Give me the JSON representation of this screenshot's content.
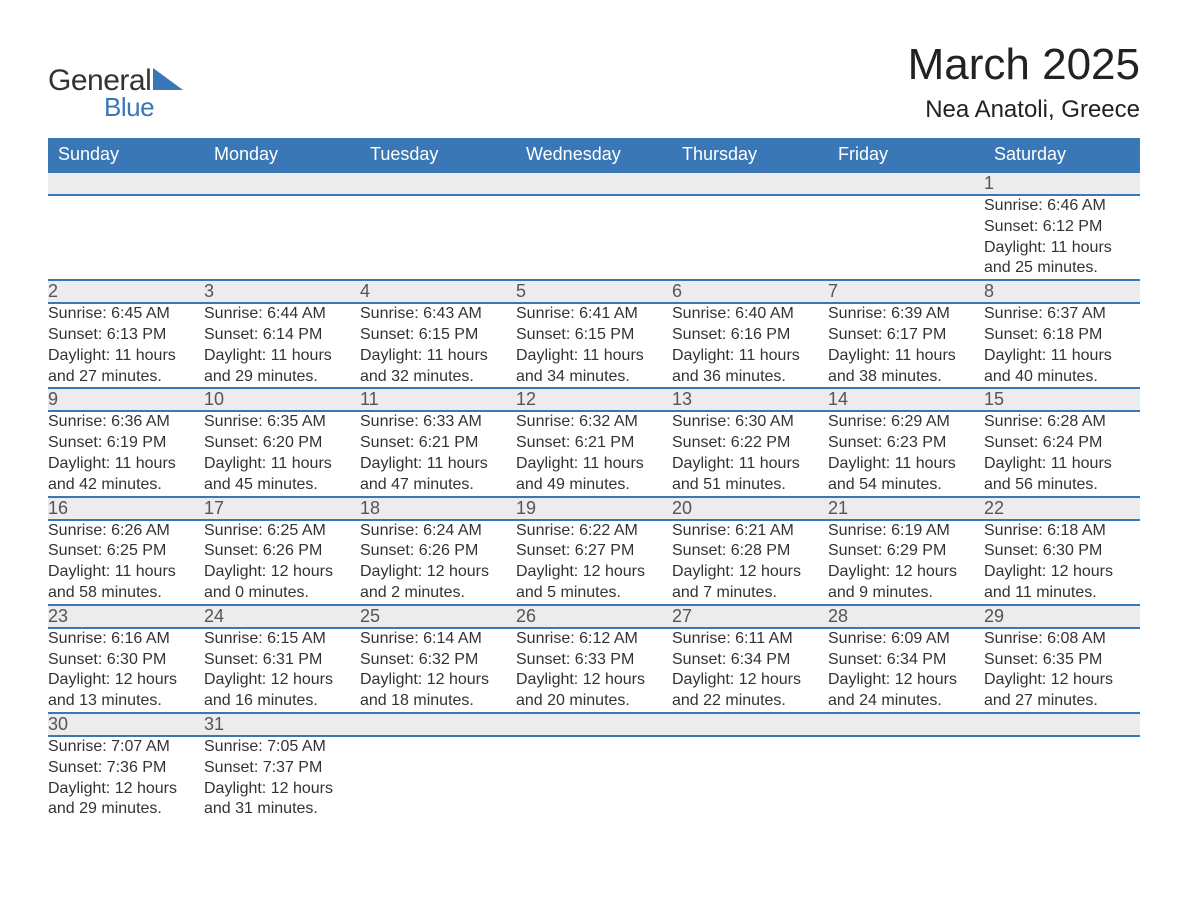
{
  "brand": {
    "name1": "General",
    "name2": "Blue",
    "shape_color": "#3a77b7",
    "text_color": "#333333"
  },
  "title": "March 2025",
  "location": "Nea Anatoli, Greece",
  "colors": {
    "header_bg": "#3a77b7",
    "header_text": "#ffffff",
    "daynum_bg": "#ececec",
    "daynum_text": "#555555",
    "row_divider": "#3a77b7",
    "body_text": "#333333",
    "page_bg": "#ffffff"
  },
  "font": {
    "family": "Arial",
    "title_size_pt": 33,
    "location_size_pt": 18,
    "header_size_pt": 14,
    "daynum_size_pt": 14,
    "detail_size_pt": 12
  },
  "weekdays": [
    "Sunday",
    "Monday",
    "Tuesday",
    "Wednesday",
    "Thursday",
    "Friday",
    "Saturday"
  ],
  "labels": {
    "sunrise": "Sunrise",
    "sunset": "Sunset",
    "daylight": "Daylight"
  },
  "weeks": [
    [
      null,
      null,
      null,
      null,
      null,
      null,
      {
        "n": "1",
        "sr": "6:46 AM",
        "ss": "6:12 PM",
        "dl": "11 hours and 25 minutes."
      }
    ],
    [
      {
        "n": "2",
        "sr": "6:45 AM",
        "ss": "6:13 PM",
        "dl": "11 hours and 27 minutes."
      },
      {
        "n": "3",
        "sr": "6:44 AM",
        "ss": "6:14 PM",
        "dl": "11 hours and 29 minutes."
      },
      {
        "n": "4",
        "sr": "6:43 AM",
        "ss": "6:15 PM",
        "dl": "11 hours and 32 minutes."
      },
      {
        "n": "5",
        "sr": "6:41 AM",
        "ss": "6:15 PM",
        "dl": "11 hours and 34 minutes."
      },
      {
        "n": "6",
        "sr": "6:40 AM",
        "ss": "6:16 PM",
        "dl": "11 hours and 36 minutes."
      },
      {
        "n": "7",
        "sr": "6:39 AM",
        "ss": "6:17 PM",
        "dl": "11 hours and 38 minutes."
      },
      {
        "n": "8",
        "sr": "6:37 AM",
        "ss": "6:18 PM",
        "dl": "11 hours and 40 minutes."
      }
    ],
    [
      {
        "n": "9",
        "sr": "6:36 AM",
        "ss": "6:19 PM",
        "dl": "11 hours and 42 minutes."
      },
      {
        "n": "10",
        "sr": "6:35 AM",
        "ss": "6:20 PM",
        "dl": "11 hours and 45 minutes."
      },
      {
        "n": "11",
        "sr": "6:33 AM",
        "ss": "6:21 PM",
        "dl": "11 hours and 47 minutes."
      },
      {
        "n": "12",
        "sr": "6:32 AM",
        "ss": "6:21 PM",
        "dl": "11 hours and 49 minutes."
      },
      {
        "n": "13",
        "sr": "6:30 AM",
        "ss": "6:22 PM",
        "dl": "11 hours and 51 minutes."
      },
      {
        "n": "14",
        "sr": "6:29 AM",
        "ss": "6:23 PM",
        "dl": "11 hours and 54 minutes."
      },
      {
        "n": "15",
        "sr": "6:28 AM",
        "ss": "6:24 PM",
        "dl": "11 hours and 56 minutes."
      }
    ],
    [
      {
        "n": "16",
        "sr": "6:26 AM",
        "ss": "6:25 PM",
        "dl": "11 hours and 58 minutes."
      },
      {
        "n": "17",
        "sr": "6:25 AM",
        "ss": "6:26 PM",
        "dl": "12 hours and 0 minutes."
      },
      {
        "n": "18",
        "sr": "6:24 AM",
        "ss": "6:26 PM",
        "dl": "12 hours and 2 minutes."
      },
      {
        "n": "19",
        "sr": "6:22 AM",
        "ss": "6:27 PM",
        "dl": "12 hours and 5 minutes."
      },
      {
        "n": "20",
        "sr": "6:21 AM",
        "ss": "6:28 PM",
        "dl": "12 hours and 7 minutes."
      },
      {
        "n": "21",
        "sr": "6:19 AM",
        "ss": "6:29 PM",
        "dl": "12 hours and 9 minutes."
      },
      {
        "n": "22",
        "sr": "6:18 AM",
        "ss": "6:30 PM",
        "dl": "12 hours and 11 minutes."
      }
    ],
    [
      {
        "n": "23",
        "sr": "6:16 AM",
        "ss": "6:30 PM",
        "dl": "12 hours and 13 minutes."
      },
      {
        "n": "24",
        "sr": "6:15 AM",
        "ss": "6:31 PM",
        "dl": "12 hours and 16 minutes."
      },
      {
        "n": "25",
        "sr": "6:14 AM",
        "ss": "6:32 PM",
        "dl": "12 hours and 18 minutes."
      },
      {
        "n": "26",
        "sr": "6:12 AM",
        "ss": "6:33 PM",
        "dl": "12 hours and 20 minutes."
      },
      {
        "n": "27",
        "sr": "6:11 AM",
        "ss": "6:34 PM",
        "dl": "12 hours and 22 minutes."
      },
      {
        "n": "28",
        "sr": "6:09 AM",
        "ss": "6:34 PM",
        "dl": "12 hours and 24 minutes."
      },
      {
        "n": "29",
        "sr": "6:08 AM",
        "ss": "6:35 PM",
        "dl": "12 hours and 27 minutes."
      }
    ],
    [
      {
        "n": "30",
        "sr": "7:07 AM",
        "ss": "7:36 PM",
        "dl": "12 hours and 29 minutes."
      },
      {
        "n": "31",
        "sr": "7:05 AM",
        "ss": "7:37 PM",
        "dl": "12 hours and 31 minutes."
      },
      null,
      null,
      null,
      null,
      null
    ]
  ]
}
